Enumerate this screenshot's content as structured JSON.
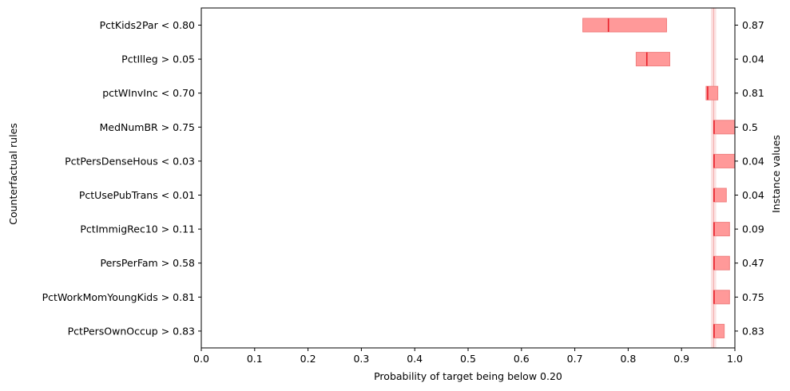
{
  "chart_data": {
    "type": "interval",
    "xlabel": "Probability of target being below 0.20",
    "ylabel": "Counterfactual rules",
    "y2label": "Instance values",
    "xlim": [
      0.0,
      1.0
    ],
    "xticks": [
      "0.0",
      "0.1",
      "0.2",
      "0.3",
      "0.4",
      "0.5",
      "0.6",
      "0.7",
      "0.8",
      "0.9",
      "1.0"
    ],
    "grid": false,
    "reference": {
      "low": 0.955,
      "high": 0.965,
      "line": 0.96
    },
    "colors": {
      "interval_fill": "#ff9999",
      "interval_edge": "#f08080",
      "median_line": "#e8202a",
      "reference_band": "#fbe2e2",
      "reference_line": "#f3a8a8"
    },
    "rules": [
      {
        "label": "PctKids2Par < 0.80",
        "instance_value": "0.87",
        "low": 0.715,
        "high": 0.872,
        "median": 0.763
      },
      {
        "label": "PctIlleg > 0.05",
        "instance_value": "0.04",
        "low": 0.815,
        "high": 0.878,
        "median": 0.835
      },
      {
        "label": "pctWInvInc < 0.70",
        "instance_value": "0.81",
        "low": 0.946,
        "high": 0.968,
        "median": 0.949
      },
      {
        "label": "MedNumBR > 0.75",
        "instance_value": "0.5",
        "low": 0.96,
        "high": 1.0,
        "median": 0.961
      },
      {
        "label": "PctPersDenseHous < 0.03",
        "instance_value": "0.04",
        "low": 0.96,
        "high": 1.0,
        "median": 0.961
      },
      {
        "label": "PctUsePubTrans < 0.01",
        "instance_value": "0.04",
        "low": 0.96,
        "high": 0.984,
        "median": 0.961
      },
      {
        "label": "PctImmigRec10 > 0.11",
        "instance_value": "0.09",
        "low": 0.96,
        "high": 0.99,
        "median": 0.961
      },
      {
        "label": "PersPerFam > 0.58",
        "instance_value": "0.47",
        "low": 0.96,
        "high": 0.99,
        "median": 0.961
      },
      {
        "label": "PctWorkMomYoungKids > 0.81",
        "instance_value": "0.75",
        "low": 0.96,
        "high": 0.99,
        "median": 0.961
      },
      {
        "label": "PctPersOwnOccup > 0.83",
        "instance_value": "0.83",
        "low": 0.96,
        "high": 0.98,
        "median": 0.961
      }
    ]
  }
}
